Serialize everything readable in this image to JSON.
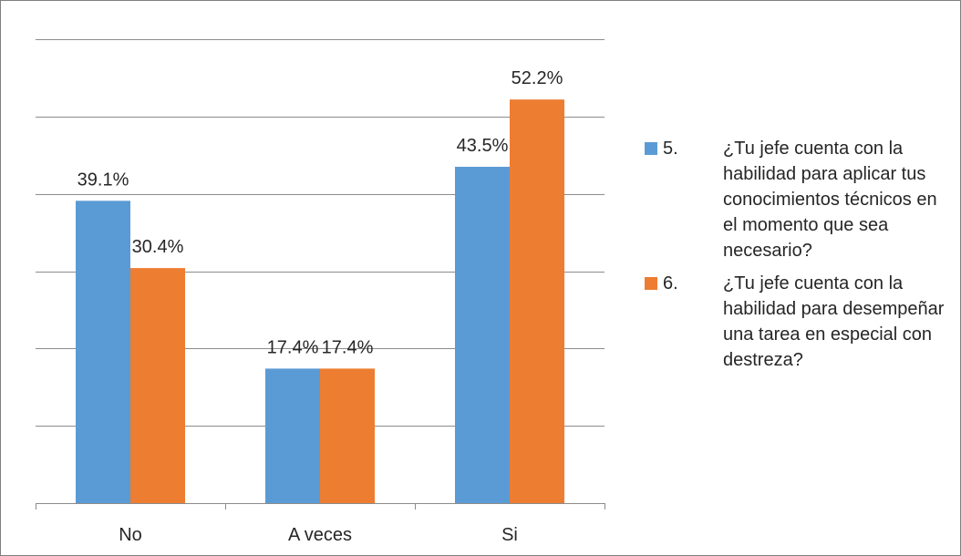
{
  "chart_data": {
    "type": "bar",
    "categories": [
      "No",
      "A veces",
      "Si"
    ],
    "series": [
      {
        "name": "5.\t¿Tu jefe cuenta con la habilidad para aplicar tus conocimientos técnicos en el momento que sea necesario?",
        "number": "5.",
        "text": "¿Tu jefe cuenta con la habilidad para aplicar tus conocimientos técnicos en el momento que sea necesario?",
        "color": "#5b9bd5",
        "values": [
          39.1,
          17.4,
          43.5
        ],
        "labels": [
          "39.1%",
          "17.4%",
          "43.5%"
        ]
      },
      {
        "name": "6.\t¿Tu jefe cuenta con la habilidad para desempeñar una tarea en especial con destreza?",
        "number": "6.",
        "text": "¿Tu jefe cuenta con la habilidad para desempeñar una tarea en especial con destreza?",
        "color": "#ed7d31",
        "values": [
          30.4,
          17.4,
          52.2
        ],
        "labels": [
          "30.4%",
          "17.4%",
          "52.2%"
        ]
      }
    ],
    "ylim": [
      0,
      60
    ],
    "grid": true,
    "legend_position": "right",
    "title": "",
    "xlabel": "",
    "ylabel": ""
  }
}
